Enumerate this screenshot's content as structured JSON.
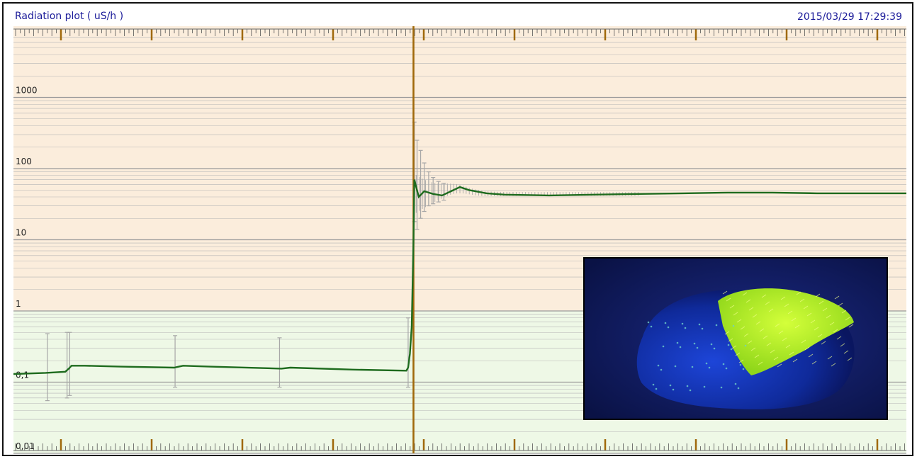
{
  "window": {
    "title": "Radiation plot ( uS/h )",
    "timestamp": "2015/03/29 17:29:39"
  },
  "colors": {
    "high_band": "#fbeddc",
    "low_band": "#eef8e6",
    "series": "#1e6b1e",
    "error_bars": "#a7a7a7",
    "event_marker": "#a0690b",
    "grid": "#b5b5b5",
    "frame": "#8fa0c8",
    "axis_label": "#222222"
  },
  "chart_data": {
    "type": "line",
    "title": "Radiation plot ( uS/h )",
    "ylabel": "uS/h",
    "yscale": "log",
    "ylim": [
      0.01,
      10000
    ],
    "ytick_labels": [
      "1000",
      "100",
      "10",
      "1",
      "0,1",
      "0,01"
    ],
    "ytick_values": [
      1000,
      100,
      10,
      1,
      0.1,
      0.01
    ],
    "xlim": [
      0,
      100
    ],
    "event_x": 44.8,
    "series": [
      {
        "points": [
          [
            0,
            0.13
          ],
          [
            3.6,
            0.135
          ],
          [
            5.8,
            0.14
          ],
          [
            6.2,
            0.155
          ],
          [
            6.5,
            0.17
          ],
          [
            8,
            0.17
          ],
          [
            12,
            0.165
          ],
          [
            18,
            0.16
          ],
          [
            19,
            0.17
          ],
          [
            22,
            0.165
          ],
          [
            30,
            0.155
          ],
          [
            31,
            0.16
          ],
          [
            38,
            0.15
          ],
          [
            44,
            0.145
          ],
          [
            44.2,
            0.16
          ],
          [
            44.4,
            0.25
          ],
          [
            44.6,
            0.6
          ],
          [
            44.8,
            10
          ],
          [
            44.9,
            70
          ],
          [
            45.1,
            55
          ],
          [
            45.4,
            40
          ],
          [
            46,
            48
          ],
          [
            47,
            44
          ],
          [
            48,
            42
          ],
          [
            49,
            48
          ],
          [
            50,
            55
          ],
          [
            51,
            50
          ],
          [
            53,
            45
          ],
          [
            55,
            43
          ],
          [
            60,
            42
          ],
          [
            65,
            43
          ],
          [
            70,
            44
          ],
          [
            75,
            45
          ],
          [
            80,
            46
          ],
          [
            85,
            46
          ],
          [
            90,
            45
          ],
          [
            95,
            45
          ],
          [
            100,
            45
          ]
        ]
      }
    ],
    "error_bars": [
      {
        "x": 3.8,
        "low": 0.055,
        "high": 0.48
      },
      {
        "x": 6.0,
        "low": 0.06,
        "high": 0.5
      },
      {
        "x": 6.3,
        "low": 0.065,
        "high": 0.5
      },
      {
        "x": 18.1,
        "low": 0.085,
        "high": 0.45
      },
      {
        "x": 29.8,
        "low": 0.085,
        "high": 0.42
      },
      {
        "x": 44.2,
        "low": 0.085,
        "high": 0.8
      },
      {
        "x": 44.9,
        "low": 18,
        "high": 450
      },
      {
        "x": 45.2,
        "low": 14,
        "high": 250
      },
      {
        "x": 45.6,
        "low": 20,
        "high": 180
      },
      {
        "x": 46.0,
        "low": 25,
        "high": 120
      },
      {
        "x": 46.5,
        "low": 30,
        "high": 90
      },
      {
        "x": 47.0,
        "low": 32,
        "high": 75
      },
      {
        "x": 47.6,
        "low": 34,
        "high": 66
      },
      {
        "x": 48.2,
        "low": 36,
        "high": 62
      }
    ],
    "grid": true
  }
}
